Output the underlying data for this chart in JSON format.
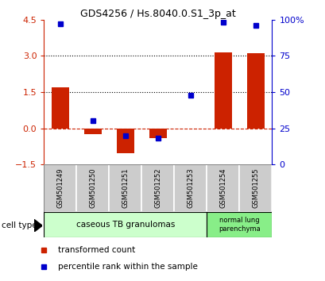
{
  "title": "GDS4256 / Hs.8040.0.S1_3p_at",
  "samples": [
    "GSM501249",
    "GSM501250",
    "GSM501251",
    "GSM501252",
    "GSM501253",
    "GSM501254",
    "GSM501255"
  ],
  "transformed_counts": [
    1.7,
    -0.25,
    -1.05,
    -0.4,
    -0.02,
    3.15,
    3.1
  ],
  "percentile_ranks": [
    97,
    30,
    20,
    18,
    48,
    98,
    96
  ],
  "ylim_left": [
    -1.5,
    4.5
  ],
  "ylim_right": [
    0,
    100
  ],
  "yticks_left": [
    -1.5,
    0,
    1.5,
    3,
    4.5
  ],
  "yticks_right": [
    0,
    25,
    50,
    75,
    100
  ],
  "bar_color": "#cc2200",
  "dot_color": "#0000cc",
  "zero_line_color": "#cc2200",
  "group1_label": "caseous TB granulomas",
  "group1_color": "#ccffcc",
  "group2_label": "normal lung\nparenchyma",
  "group2_color": "#88ee88",
  "cell_type_label": "cell type",
  "legend_red": "transformed count",
  "legend_blue": "percentile rank within the sample",
  "bar_width": 0.55,
  "sample_box_color": "#cccccc",
  "group1_n": 5,
  "group2_n": 2
}
